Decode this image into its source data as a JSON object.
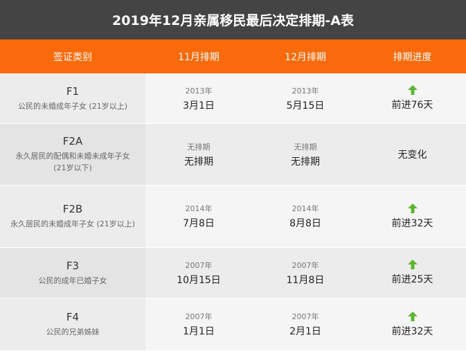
{
  "title": "2019年12月亲属移民最后决定排期-A表",
  "header": {
    "col1": "签证类别",
    "col2": "11月排期",
    "col3": "12月排期",
    "col4": "排期进度"
  },
  "colors": {
    "title_bg": "#444444",
    "header_bg": "#f86a0b",
    "arrow": "#5cb531"
  },
  "rows": [
    {
      "code": "F1",
      "desc": "公民的未婚成年子女 (21岁以上)",
      "nov_year": "2013年",
      "nov_date": "3月1日",
      "dec_year": "2013年",
      "dec_date": "5月15日",
      "progress": "前进76天",
      "arrow_icon": "up-arrow-icon"
    },
    {
      "code": "F2A",
      "desc": "永久居民的配偶和未婚未成年子女 (21岁以下)",
      "nov_year": "无排期",
      "nov_date": "无排期",
      "dec_year": "无排期",
      "dec_date": "无排期",
      "progress": "无变化",
      "arrow_icon": ""
    },
    {
      "code": "F2B",
      "desc": "永久居民的未婚成年子女 (21岁以上)",
      "nov_year": "2014年",
      "nov_date": "7月8日",
      "dec_year": "2014年",
      "dec_date": "8月8日",
      "progress": "前进32天",
      "arrow_icon": "up-arrow-icon"
    },
    {
      "code": "F3",
      "desc": "公民的成年已婚子女",
      "nov_year": "2007年",
      "nov_date": "10月15日",
      "dec_year": "2007年",
      "dec_date": "11月8日",
      "progress": "前进25天",
      "arrow_icon": "up-arrow-icon"
    },
    {
      "code": "F4",
      "desc": "公民的兄弟姊妹",
      "nov_year": "2007年",
      "nov_date": "1月1日",
      "dec_year": "2007年",
      "dec_date": "2月1日",
      "progress": "前进32天",
      "arrow_icon": "up-arrow-icon"
    }
  ]
}
